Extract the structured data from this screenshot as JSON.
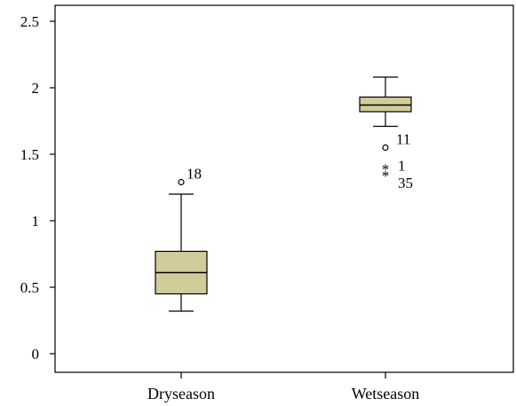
{
  "chart_data": {
    "type": "box",
    "title": "",
    "xlabel": "",
    "ylabel": "",
    "ylim": [
      0,
      2.5
    ],
    "yticks": [
      0,
      0.5,
      1,
      1.5,
      2,
      2.5
    ],
    "ytick_labels": [
      "0",
      "0.5",
      "1",
      "1.5",
      "2",
      "2.5"
    ],
    "categories": [
      "Dryseason",
      "Wetseason"
    ],
    "boxes": [
      {
        "category": "Dryseason",
        "whisker_low": 0.32,
        "q1": 0.45,
        "median": 0.61,
        "q3": 0.77,
        "whisker_high": 1.2,
        "outliers": [
          {
            "value": 1.29,
            "label": "18",
            "marker": "circle"
          }
        ]
      },
      {
        "category": "Wetseason",
        "whisker_low": 1.71,
        "q1": 1.82,
        "median": 1.87,
        "q3": 1.93,
        "whisker_high": 2.08,
        "outliers": [
          {
            "value": 1.55,
            "label": "11",
            "marker": "circle"
          },
          {
            "value": 1.39,
            "label": "1",
            "marker": "star"
          },
          {
            "value": 1.34,
            "label": "35",
            "marker": "star"
          }
        ]
      }
    ],
    "box_fill": "#d2cc9b",
    "grid": false
  }
}
